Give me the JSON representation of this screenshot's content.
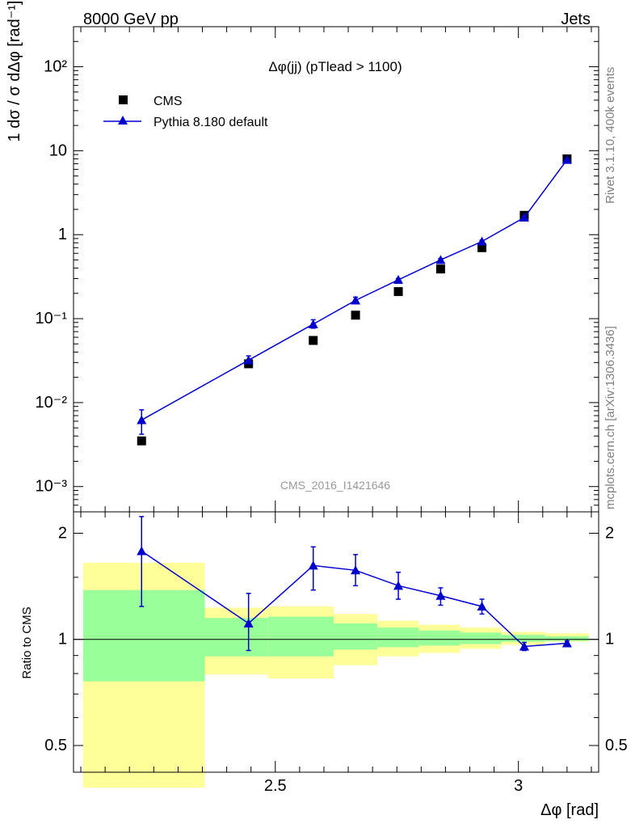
{
  "header": {
    "left": "8000 GeV pp",
    "right": "Jets"
  },
  "side_labels": {
    "rivet": "Rivet 3.1.10,  400k events",
    "mcplots": "mcplots.cern.ch [arXiv:1306.3436]"
  },
  "chart_data": [
    {
      "type": "scatter",
      "title": "Δφ(jj) (pTlead >  1100)",
      "watermark": "CMS_2016_I1421646",
      "ylabel": "1 dσ / σ dΔφ [rad⁻¹]",
      "yscale": "log",
      "ylim": [
        0.0005,
        300
      ],
      "xlim": [
        2.085,
        3.165
      ],
      "yticks": [
        {
          "value": 0.001,
          "label": "10⁻³"
        },
        {
          "value": 0.01,
          "label": "10⁻²"
        },
        {
          "value": 0.1,
          "label": "10⁻¹"
        },
        {
          "value": 1,
          "label": "1"
        },
        {
          "value": 10,
          "label": "10"
        },
        {
          "value": 100,
          "label": "10²"
        }
      ],
      "legend": {
        "placement": "top-left"
      },
      "series": [
        {
          "name": "CMS",
          "marker": "square",
          "color": "#000000",
          "x": [
            2.225,
            2.445,
            2.578,
            2.665,
            2.753,
            2.84,
            2.925,
            3.012,
            3.1
          ],
          "y": [
            0.0035,
            0.029,
            0.055,
            0.11,
            0.21,
            0.39,
            0.7,
            1.7,
            8.0
          ]
        },
        {
          "name": "Pythia 8.180 default",
          "marker": "triangle",
          "color": "#0000cc",
          "x": [
            2.225,
            2.445,
            2.578,
            2.665,
            2.753,
            2.84,
            2.925,
            3.012,
            3.1
          ],
          "y": [
            0.0062,
            0.032,
            0.086,
            0.165,
            0.29,
            0.5,
            0.83,
            1.6,
            7.8
          ],
          "err_lo": [
            0.0042,
            0.029,
            0.077,
            0.155,
            0.28,
            0.48,
            0.8,
            1.55,
            7.6
          ],
          "err_hi": [
            0.0082,
            0.036,
            0.097,
            0.18,
            0.3,
            0.52,
            0.86,
            1.66,
            8.0
          ]
        }
      ]
    },
    {
      "type": "scatter",
      "ylabel": "Ratio to CMS",
      "xlabel": "Δφ [rad]",
      "yscale": "log",
      "ylim": [
        0.42,
        2.3
      ],
      "xlim": [
        2.085,
        3.165
      ],
      "yticks": [
        {
          "value": 0.5,
          "label": "0.5"
        },
        {
          "value": 1,
          "label": "1"
        },
        {
          "value": 2,
          "label": "2"
        }
      ],
      "xticks": [
        {
          "value": 2.5,
          "label": "2.5"
        },
        {
          "value": 3,
          "label": "3"
        }
      ],
      "bands": {
        "color_outer": "#ffff99",
        "color_inner": "#99ff99",
        "edges": [
          2.105,
          2.355,
          2.485,
          2.62,
          2.71,
          2.795,
          2.88,
          2.965,
          3.055,
          3.145
        ],
        "outer_lo": [
          0.38,
          0.795,
          0.775,
          0.845,
          0.895,
          0.915,
          0.94,
          0.965,
          0.985
        ],
        "outer_hi": [
          1.65,
          1.23,
          1.24,
          1.18,
          1.13,
          1.1,
          1.08,
          1.05,
          1.04
        ],
        "inner_lo": [
          0.76,
          0.895,
          0.895,
          0.935,
          0.95,
          0.96,
          0.97,
          0.985,
          0.99
        ],
        "inner_hi": [
          1.38,
          1.15,
          1.16,
          1.11,
          1.08,
          1.06,
          1.045,
          1.03,
          1.02
        ]
      },
      "series": [
        {
          "name": "Pythia 8.180 default",
          "marker": "triangle",
          "color": "#0000cc",
          "x": [
            2.225,
            2.445,
            2.578,
            2.665,
            2.753,
            2.84,
            2.925,
            3.012,
            3.1
          ],
          "y": [
            1.78,
            1.11,
            1.62,
            1.57,
            1.42,
            1.33,
            1.24,
            0.955,
            0.975
          ],
          "err_lo": [
            1.24,
            0.93,
            1.38,
            1.42,
            1.3,
            1.25,
            1.18,
            0.93,
            0.96
          ],
          "err_hi": [
            2.23,
            1.35,
            1.83,
            1.74,
            1.55,
            1.4,
            1.3,
            0.98,
            0.99
          ]
        }
      ]
    }
  ]
}
